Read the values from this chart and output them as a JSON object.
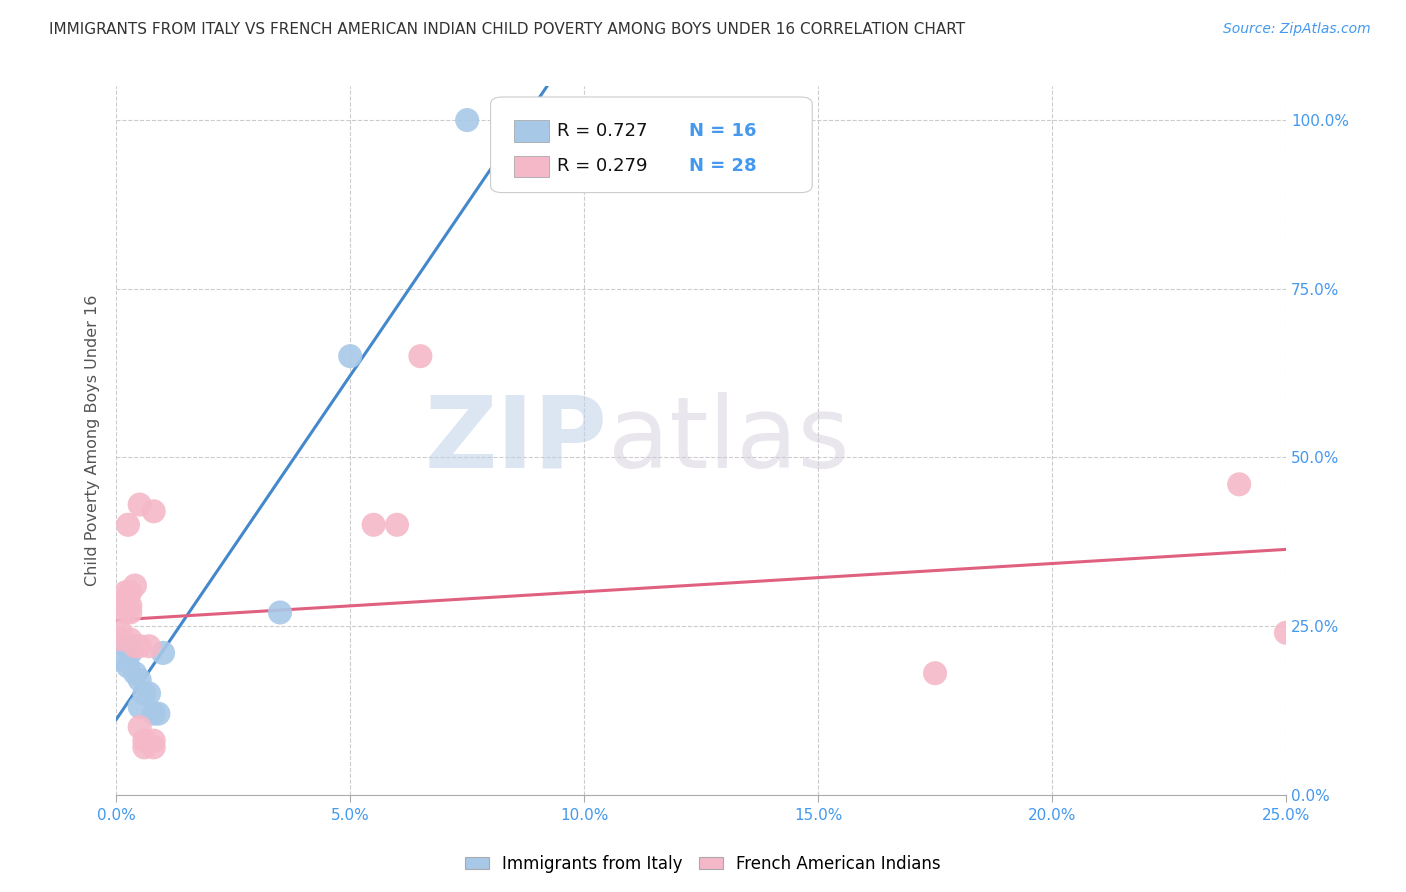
{
  "title": "IMMIGRANTS FROM ITALY VS FRENCH AMERICAN INDIAN CHILD POVERTY AMONG BOYS UNDER 16 CORRELATION CHART",
  "source": "Source: ZipAtlas.com",
  "ylabel": "Child Poverty Among Boys Under 16",
  "xlim": [
    0.0,
    25.0
  ],
  "ylim": [
    0.0,
    105.0
  ],
  "xtick_vals": [
    0.0,
    5.0,
    10.0,
    15.0,
    20.0,
    25.0
  ],
  "ytick_vals": [
    0.0,
    25.0,
    50.0,
    75.0,
    100.0
  ],
  "blue_color": "#a8c8e8",
  "pink_color": "#f4b8c8",
  "blue_line_color": "#4488cc",
  "pink_line_color": "#e06080",
  "R_blue": 0.727,
  "N_blue": 16,
  "R_pink": 0.279,
  "N_pink": 28,
  "legend_label_blue": "Immigrants from Italy",
  "legend_label_pink": "French American Indians",
  "watermark_zip": "ZIP",
  "watermark_atlas": "atlas",
  "blue_scatter": [
    [
      0.1,
      20.0
    ],
    [
      0.2,
      22.0
    ],
    [
      0.25,
      19.0
    ],
    [
      0.3,
      21.0
    ],
    [
      0.4,
      18.0
    ],
    [
      0.5,
      13.0
    ],
    [
      0.5,
      17.0
    ],
    [
      0.6,
      15.0
    ],
    [
      0.7,
      15.0
    ],
    [
      0.8,
      12.0
    ],
    [
      0.9,
      12.0
    ],
    [
      1.0,
      21.0
    ],
    [
      3.5,
      27.0
    ],
    [
      5.0,
      65.0
    ],
    [
      7.5,
      100.0
    ],
    [
      9.0,
      100.0
    ]
  ],
  "pink_scatter": [
    [
      0.1,
      24.0
    ],
    [
      0.1,
      23.0
    ],
    [
      0.2,
      30.0
    ],
    [
      0.2,
      29.0
    ],
    [
      0.2,
      28.0
    ],
    [
      0.2,
      27.0
    ],
    [
      0.25,
      40.0
    ],
    [
      0.3,
      30.0
    ],
    [
      0.3,
      28.0
    ],
    [
      0.3,
      27.0
    ],
    [
      0.3,
      23.0
    ],
    [
      0.4,
      31.0
    ],
    [
      0.4,
      22.0
    ],
    [
      0.5,
      43.0
    ],
    [
      0.5,
      22.0
    ],
    [
      0.5,
      10.0
    ],
    [
      0.6,
      8.0
    ],
    [
      0.6,
      7.0
    ],
    [
      0.7,
      22.0
    ],
    [
      0.8,
      42.0
    ],
    [
      0.8,
      8.0
    ],
    [
      0.8,
      7.0
    ],
    [
      5.5,
      40.0
    ],
    [
      6.0,
      40.0
    ],
    [
      6.5,
      65.0
    ],
    [
      17.5,
      18.0
    ],
    [
      24.0,
      46.0
    ],
    [
      25.0,
      24.0
    ]
  ],
  "blue_line_x": [
    0.0,
    9.5
  ],
  "pink_line_x": [
    0.0,
    25.0
  ]
}
